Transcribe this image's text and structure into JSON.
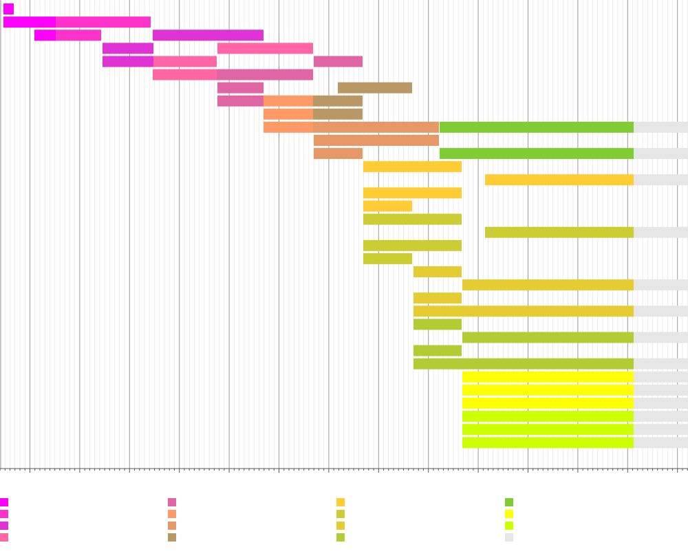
{
  "chart_data": {
    "type": "bar",
    "subtype": "gantt",
    "title": "",
    "xlabel": "",
    "ylabel": "",
    "x_range": [
      0,
      1000
    ],
    "grid": true,
    "legend_position": "bottom",
    "palette": [
      {
        "key": "c1",
        "name": "",
        "color": "#ff00ff"
      },
      {
        "key": "c2",
        "name": "",
        "color": "#ff33cc"
      },
      {
        "key": "c3",
        "name": "",
        "color": "#e033d6"
      },
      {
        "key": "c4",
        "name": "",
        "color": "#ff66a3"
      },
      {
        "key": "c5",
        "name": "",
        "color": "#e066a3"
      },
      {
        "key": "c6",
        "name": "",
        "color": "#ff9966"
      },
      {
        "key": "c7",
        "name": "",
        "color": "#e69966"
      },
      {
        "key": "c8",
        "name": "",
        "color": "#b89966"
      },
      {
        "key": "c9",
        "name": "",
        "color": "#ffcc33"
      },
      {
        "key": "c10",
        "name": "",
        "color": "#cccc33"
      },
      {
        "key": "c11",
        "name": "",
        "color": "#e6cc33"
      },
      {
        "key": "c12",
        "name": "",
        "color": "#b3cc33"
      },
      {
        "key": "c13",
        "name": "",
        "color": "#80cc33"
      },
      {
        "key": "c14",
        "name": "",
        "color": "#ffff00"
      },
      {
        "key": "c15",
        "name": "",
        "color": "#ccff00"
      },
      {
        "key": "c16",
        "name": "",
        "color": "#e6e6e6"
      }
    ],
    "rows": [
      [
        {
          "start": 5,
          "end": 20,
          "c": "c1"
        }
      ],
      [
        {
          "start": 5,
          "end": 81,
          "c": "c1"
        },
        {
          "start": 81,
          "end": 219,
          "c": "c2"
        }
      ],
      [
        {
          "start": 50,
          "end": 81,
          "c": "c1"
        },
        {
          "start": 81,
          "end": 147,
          "c": "c2"
        },
        {
          "start": 222,
          "end": 383,
          "c": "c3"
        }
      ],
      [
        {
          "start": 149,
          "end": 223,
          "c": "c3"
        },
        {
          "start": 316,
          "end": 455,
          "c": "c4"
        }
      ],
      [
        {
          "start": 149,
          "end": 223,
          "c": "c3"
        },
        {
          "start": 223,
          "end": 315,
          "c": "c4"
        },
        {
          "start": 456,
          "end": 527,
          "c": "c5"
        }
      ],
      [
        {
          "start": 222,
          "end": 315,
          "c": "c4"
        },
        {
          "start": 315,
          "end": 455,
          "c": "c5"
        }
      ],
      [
        {
          "start": 316,
          "end": 383,
          "c": "c5"
        },
        {
          "start": 491,
          "end": 599,
          "c": "c8"
        }
      ],
      [
        {
          "start": 316,
          "end": 383,
          "c": "c5"
        },
        {
          "start": 383,
          "end": 455,
          "c": "c6"
        },
        {
          "start": 455,
          "end": 527,
          "c": "c8"
        }
      ],
      [
        {
          "start": 383,
          "end": 455,
          "c": "c6"
        },
        {
          "start": 455,
          "end": 527,
          "c": "c8"
        }
      ],
      [
        {
          "start": 383,
          "end": 455,
          "c": "c6"
        },
        {
          "start": 455,
          "end": 638,
          "c": "c7"
        },
        {
          "start": 639,
          "end": 921,
          "c": "c13"
        },
        {
          "start": 921,
          "end": 1000,
          "c": "c16"
        }
      ],
      [
        {
          "start": 456,
          "end": 638,
          "c": "c7"
        }
      ],
      [
        {
          "start": 456,
          "end": 527,
          "c": "c7"
        },
        {
          "start": 639,
          "end": 921,
          "c": "c13"
        },
        {
          "start": 921,
          "end": 1000,
          "c": "c16"
        }
      ],
      [
        {
          "start": 528,
          "end": 671,
          "c": "c9"
        }
      ],
      [
        {
          "start": 705,
          "end": 921,
          "c": "c9"
        },
        {
          "start": 921,
          "end": 1000,
          "c": "c16"
        }
      ],
      [
        {
          "start": 528,
          "end": 671,
          "c": "c9"
        }
      ],
      [
        {
          "start": 528,
          "end": 599,
          "c": "c9"
        }
      ],
      [
        {
          "start": 528,
          "end": 671,
          "c": "c10"
        }
      ],
      [
        {
          "start": 705,
          "end": 921,
          "c": "c10"
        },
        {
          "start": 921,
          "end": 1000,
          "c": "c16"
        }
      ],
      [
        {
          "start": 528,
          "end": 671,
          "c": "c10"
        }
      ],
      [
        {
          "start": 528,
          "end": 599,
          "c": "c10"
        }
      ],
      [
        {
          "start": 601,
          "end": 671,
          "c": "c11"
        }
      ],
      [
        {
          "start": 672,
          "end": 921,
          "c": "c11"
        },
        {
          "start": 921,
          "end": 1000,
          "c": "c16"
        }
      ],
      [
        {
          "start": 601,
          "end": 671,
          "c": "c11"
        }
      ],
      [
        {
          "start": 601,
          "end": 921,
          "c": "c11"
        },
        {
          "start": 921,
          "end": 1000,
          "c": "c16"
        }
      ],
      [
        {
          "start": 601,
          "end": 671,
          "c": "c12"
        }
      ],
      [
        {
          "start": 672,
          "end": 921,
          "c": "c12"
        },
        {
          "start": 921,
          "end": 1000,
          "c": "c16"
        }
      ],
      [
        {
          "start": 601,
          "end": 671,
          "c": "c12"
        }
      ],
      [
        {
          "start": 601,
          "end": 921,
          "c": "c12"
        },
        {
          "start": 921,
          "end": 1000,
          "c": "c16"
        }
      ],
      [
        {
          "start": 672,
          "end": 921,
          "c": "c14"
        },
        {
          "start": 921,
          "end": 1000,
          "c": "c16"
        }
      ],
      [
        {
          "start": 672,
          "end": 921,
          "c": "c14"
        },
        {
          "start": 921,
          "end": 1000,
          "c": "c16"
        }
      ],
      [
        {
          "start": 672,
          "end": 921,
          "c": "c14"
        },
        {
          "start": 921,
          "end": 1000,
          "c": "c16"
        }
      ],
      [
        {
          "start": 672,
          "end": 921,
          "c": "c15"
        },
        {
          "start": 921,
          "end": 1000,
          "c": "c16"
        }
      ],
      [
        {
          "start": 672,
          "end": 921,
          "c": "c15"
        },
        {
          "start": 921,
          "end": 1000,
          "c": "c16"
        }
      ],
      [
        {
          "start": 672,
          "end": 921,
          "c": "c15"
        },
        {
          "start": 921,
          "end": 1000,
          "c": "c16"
        }
      ]
    ]
  }
}
